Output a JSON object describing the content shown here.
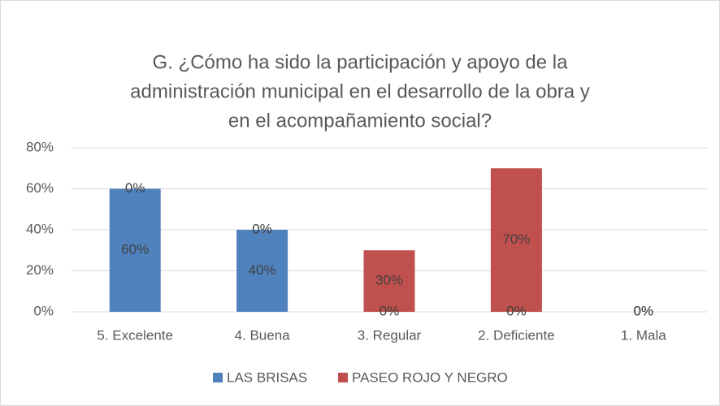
{
  "chart_data": {
    "type": "stacked_bar",
    "title": [
      "G. ¿Cómo ha sido la participación y apoyo de la",
      "administración municipal en el desarrollo de la obra y",
      "en el acompañamiento social?"
    ],
    "categories": [
      "5. Excelente",
      "4. Buena",
      "3. Regular",
      "2. Deficiente",
      "1. Mala"
    ],
    "series": [
      {
        "name": "LAS BRISAS",
        "color": "#4f81bd",
        "values": [
          60,
          40,
          0,
          0,
          0
        ],
        "value_labels": [
          "60%",
          "40%",
          "0%",
          "0%",
          "0%"
        ]
      },
      {
        "name": "PASEO ROJO Y NEGRO",
        "color": "#c0504d",
        "values": [
          0,
          0,
          30,
          70,
          0
        ],
        "value_labels": [
          "0%",
          "0%",
          "30%",
          "70%",
          "0%"
        ]
      }
    ],
    "ylim": [
      0,
      80
    ],
    "yticks": [
      {
        "value": 0,
        "label": "0%"
      },
      {
        "value": 20,
        "label": "20%"
      },
      {
        "value": 40,
        "label": "40%"
      },
      {
        "value": 60,
        "label": "60%"
      },
      {
        "value": 80,
        "label": "80%"
      }
    ],
    "grid": true,
    "legend": "bottom"
  }
}
